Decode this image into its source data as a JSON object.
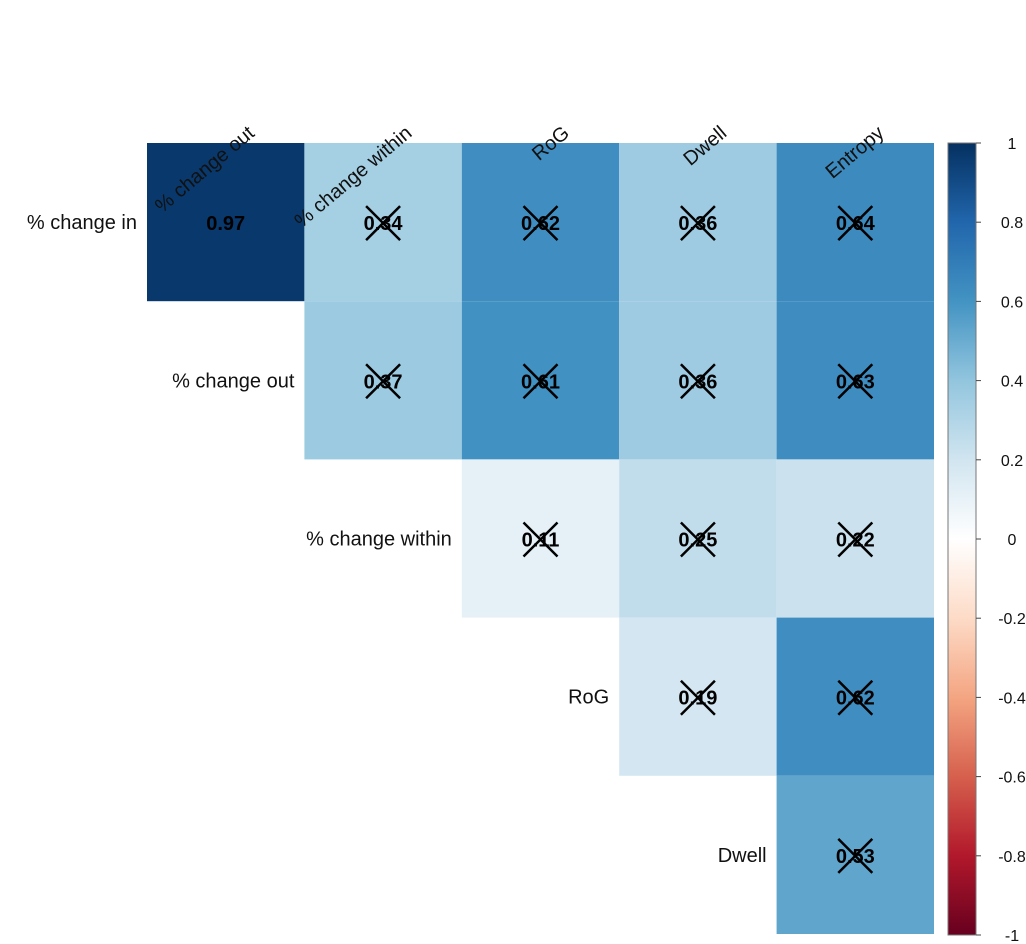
{
  "chart_data": {
    "type": "heatmap",
    "variant": "correlation matrix (upper triangle)",
    "row_labels": [
      "% change in",
      "% change out",
      "% change within",
      "RoG",
      "Dwell"
    ],
    "col_labels": [
      "% change out",
      "% change within",
      "RoG",
      "Dwell",
      "Entropy"
    ],
    "cells": [
      {
        "row": "% change in",
        "col": "% change out",
        "value": 0.97,
        "label": "0.97",
        "crossed": false
      },
      {
        "row": "% change in",
        "col": "% change within",
        "value": 0.34,
        "label": "0.34",
        "crossed": true
      },
      {
        "row": "% change in",
        "col": "RoG",
        "value": 0.62,
        "label": "0.62",
        "crossed": true
      },
      {
        "row": "% change in",
        "col": "Dwell",
        "value": 0.36,
        "label": "0.36",
        "crossed": true
      },
      {
        "row": "% change in",
        "col": "Entropy",
        "value": 0.64,
        "label": "0.64",
        "crossed": true
      },
      {
        "row": "% change out",
        "col": "% change within",
        "value": 0.37,
        "label": "0.37",
        "crossed": true
      },
      {
        "row": "% change out",
        "col": "RoG",
        "value": 0.61,
        "label": "0.61",
        "crossed": true
      },
      {
        "row": "% change out",
        "col": "Dwell",
        "value": 0.36,
        "label": "0.36",
        "crossed": true
      },
      {
        "row": "% change out",
        "col": "Entropy",
        "value": 0.63,
        "label": "0.63",
        "crossed": true
      },
      {
        "row": "% change within",
        "col": "RoG",
        "value": 0.11,
        "label": "0.11",
        "crossed": true
      },
      {
        "row": "% change within",
        "col": "Dwell",
        "value": 0.25,
        "label": "0.25",
        "crossed": true
      },
      {
        "row": "% change within",
        "col": "Entropy",
        "value": 0.22,
        "label": "0.22",
        "crossed": true
      },
      {
        "row": "RoG",
        "col": "Dwell",
        "value": 0.19,
        "label": "0.19",
        "crossed": true
      },
      {
        "row": "RoG",
        "col": "Entropy",
        "value": 0.62,
        "label": "0.62",
        "crossed": true
      },
      {
        "row": "Dwell",
        "col": "Entropy",
        "value": 0.53,
        "label": "0.53",
        "crossed": true
      }
    ],
    "color_scale": {
      "range": [
        -1,
        1
      ],
      "colors": [
        "#67001F",
        "#B2182B",
        "#D6604D",
        "#F4A582",
        "#FDDBC7",
        "#FFFFFF",
        "#D1E5F0",
        "#92C5DE",
        "#4393C3",
        "#2166AC",
        "#053061"
      ],
      "ticks": [
        "1",
        "0.8",
        "0.6",
        "0.4",
        "0.2",
        "0",
        "-0.2",
        "-0.4",
        "-0.6",
        "-0.8",
        "-1"
      ]
    },
    "legend": "right"
  }
}
